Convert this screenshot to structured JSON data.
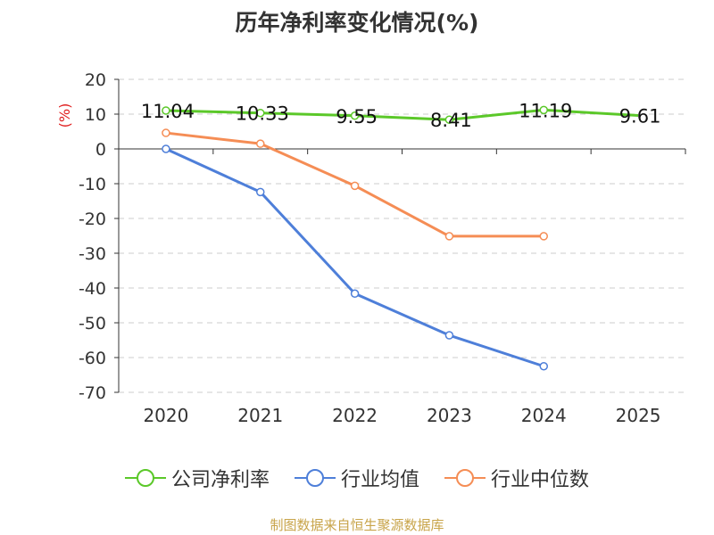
{
  "chart_data": {
    "type": "line",
    "title": "历年净利率变化情况(%)",
    "ylabel": "(%)",
    "categories": [
      "2020",
      "2021",
      "2022",
      "2023",
      "2024",
      "2025"
    ],
    "ylim": [
      -70,
      20
    ],
    "yticks": [
      "20",
      "10",
      "0",
      "-10",
      "-20",
      "-30",
      "-40",
      "-50",
      "-60",
      "-70"
    ],
    "grid": true,
    "legend_position": "bottom",
    "series": [
      {
        "name": "公司净利率",
        "color": "#5bc829",
        "values": [
          11.04,
          10.33,
          9.55,
          8.41,
          11.19,
          9.61
        ],
        "labels": [
          "11.04",
          "10.33",
          "9.55",
          "8.41",
          "11.19",
          "9.61"
        ]
      },
      {
        "name": "行业均值",
        "color": "#4e7fd9",
        "values": [
          0.0,
          -12.4,
          -41.6,
          -53.6,
          -62.5,
          null
        ]
      },
      {
        "name": "行业中位数",
        "color": "#f58d55",
        "values": [
          4.6,
          1.5,
          -10.6,
          -25.1,
          -25.1,
          null
        ]
      }
    ]
  },
  "legend": {
    "items": [
      "公司净利率",
      "行业均值",
      "行业中位数"
    ]
  },
  "source": "制图数据来自恒生聚源数据库"
}
